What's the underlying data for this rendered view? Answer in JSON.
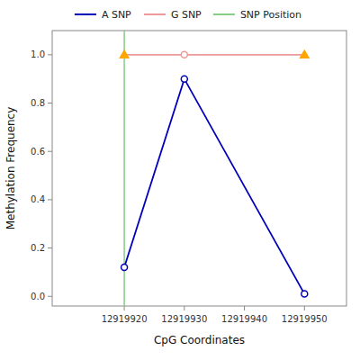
{
  "chart_data": {
    "type": "line",
    "xlabel": "CpG Coordinates",
    "ylabel": "Methylation Frequency",
    "xlim": [
      12919908,
      12919957
    ],
    "ylim": [
      -0.04,
      1.1
    ],
    "xticks": [
      12919920,
      12919930,
      12919940,
      12919950
    ],
    "yticks": [
      {
        "value": 0,
        "label": "0.0"
      },
      0.2,
      0.4,
      0.6,
      0.8,
      {
        "value": 1,
        "label": "1.0"
      }
    ],
    "grid": false,
    "legend": "top",
    "series": [
      {
        "name": "A SNP",
        "color": "#0000BB",
        "marker": "circle",
        "line_style": "solid",
        "x": [
          12919920,
          12919930,
          12919950
        ],
        "values": [
          0.12,
          0.9,
          0.01
        ]
      },
      {
        "name": "G SNP",
        "color": "#EE9999",
        "line_style": "solid",
        "x": [
          12919920,
          12919930,
          12919950
        ],
        "values": [
          1.0,
          1.0,
          1.0
        ]
      },
      {
        "name": "SNP Position",
        "type": "vline",
        "color": "#88CC88",
        "x": [
          12919920
        ]
      },
      {
        "color": "#EE9999",
        "marker": "circle",
        "line_style": "none",
        "x": [
          12919930
        ],
        "values": [
          1.0
        ]
      },
      {
        "color": "#FFA500",
        "marker": "triangle",
        "line_style": "none",
        "x": [
          12919920,
          12919950
        ],
        "values": [
          1.0,
          1.0
        ]
      }
    ]
  }
}
